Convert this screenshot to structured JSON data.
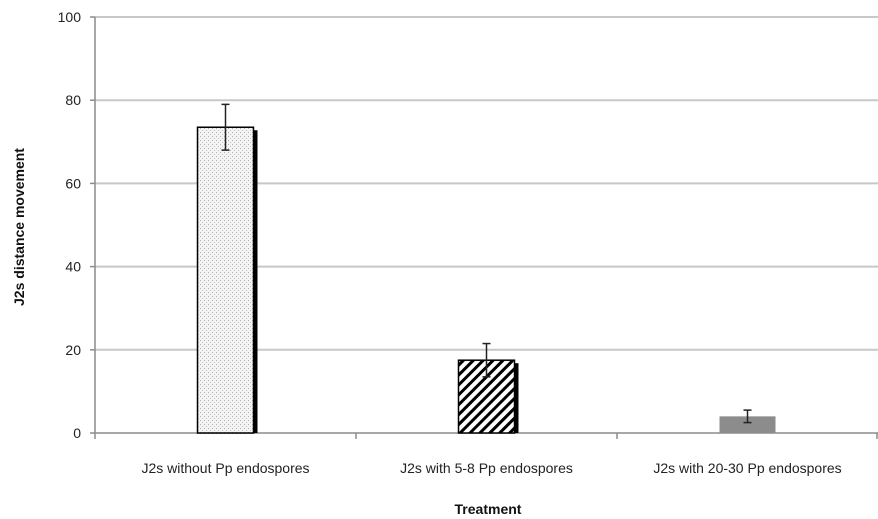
{
  "chart_data": {
    "type": "bar",
    "title": "",
    "xlabel": "Treatment",
    "ylabel": "J2s distance movement",
    "categories": [
      "J2s without Pp endospores",
      "J2s with 5-8 Pp endospores",
      "J2s with 20-30 Pp endospores"
    ],
    "values": [
      73.5,
      17.5,
      4.0
    ],
    "error": [
      5.5,
      4.0,
      1.5
    ],
    "bar_fills": [
      "dotted-light",
      "diagonal-hatch",
      "solid-gray"
    ],
    "ylim": [
      0,
      100
    ],
    "yticks": [
      0,
      20,
      40,
      60,
      80,
      100
    ],
    "grid": true,
    "legend": "none"
  },
  "colors": {
    "gridline": "#c8c8c8",
    "axis": "#8c8c8c",
    "bar_edge": "#000000",
    "bar_shadow": "#000000",
    "bar1_fill": "#f2f2f2",
    "bar3_fill": "#8c8c8c",
    "error_bar": "#222222"
  }
}
